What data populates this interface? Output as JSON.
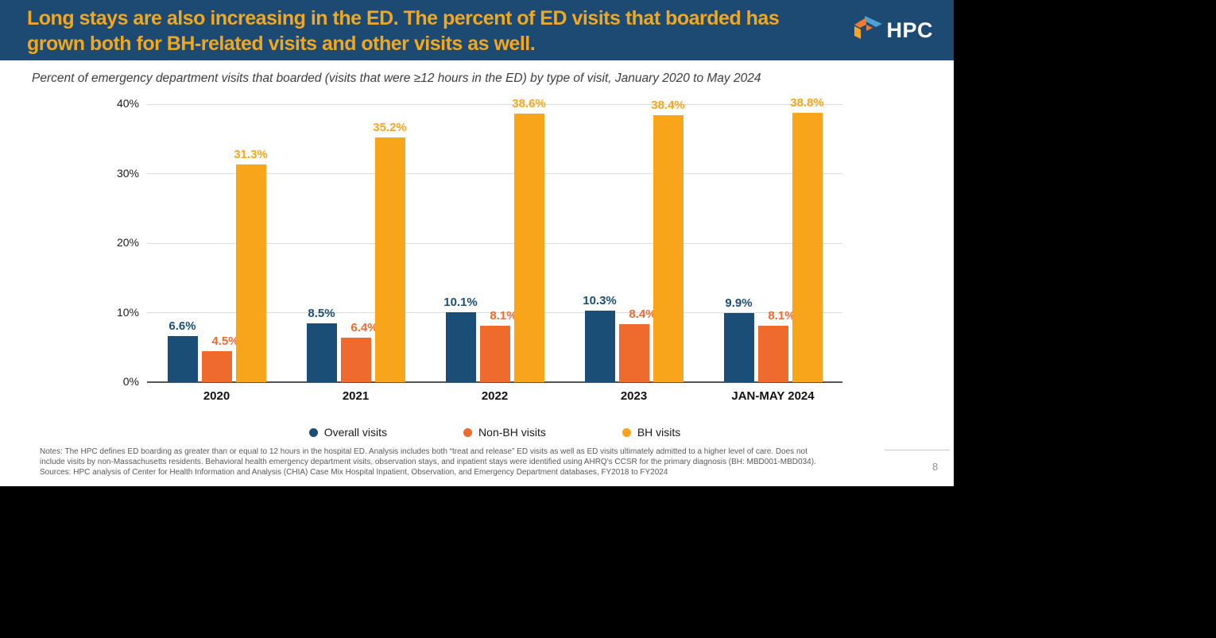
{
  "header": {
    "title_line1": "Long stays are also increasing in the ED. The percent of ED visits that boarded has",
    "title_line2": "grown both for BH-related visits and other visits as well.",
    "logo_text": "HPC"
  },
  "subtitle": "Percent of emergency department visits that boarded (visits that were ≥12 hours in the ED) by type of visit, January 2020 to May 2024",
  "chart_data": {
    "type": "bar",
    "title": "Percent of emergency department visits that boarded (visits that were ≥12 hours in the ED) by type of visit, January 2020 to May 2024",
    "categories": [
      "2020",
      "2021",
      "2022",
      "2023",
      "JAN-MAY 2024"
    ],
    "series": [
      {
        "name": "Overall visits",
        "color": "#1B4E76",
        "values": [
          6.6,
          8.5,
          10.1,
          10.3,
          9.9
        ]
      },
      {
        "name": "Non-BH visits",
        "color": "#EE6A2D",
        "values": [
          4.5,
          6.4,
          8.1,
          8.4,
          8.1
        ]
      },
      {
        "name": "BH visits",
        "color": "#F9A51C",
        "values": [
          31.3,
          35.2,
          38.6,
          38.4,
          38.8
        ]
      }
    ],
    "y_ticks": [
      "40%",
      "30%",
      "20%",
      "10%",
      "0%"
    ],
    "ylim": [
      0,
      40
    ],
    "grid": true,
    "legend_position": "bottom",
    "value_label_format": "{value}%"
  },
  "footer": {
    "notes_lines": [
      "Notes: The HPC defines ED boarding as greater than or equal to 12 hours in the hospital ED. Analysis includes both “treat and release” ED visits as well as ED visits ultimately admitted to a higher level of care. Does not",
      "include visits by non-Massachusetts residents. Behavioral health emergency department visits, observation stays, and inpatient stays were identified using AHRQ's CCSR for the primary diagnosis (BH: MBD001-MBD034).",
      "Sources: HPC analysis of Center for Health Information and Analysis (CHIA) Case Mix Hospital Inpatient, Observation, and Emergency Department databases, FY2018 to FY2024"
    ],
    "page_number": "8"
  }
}
